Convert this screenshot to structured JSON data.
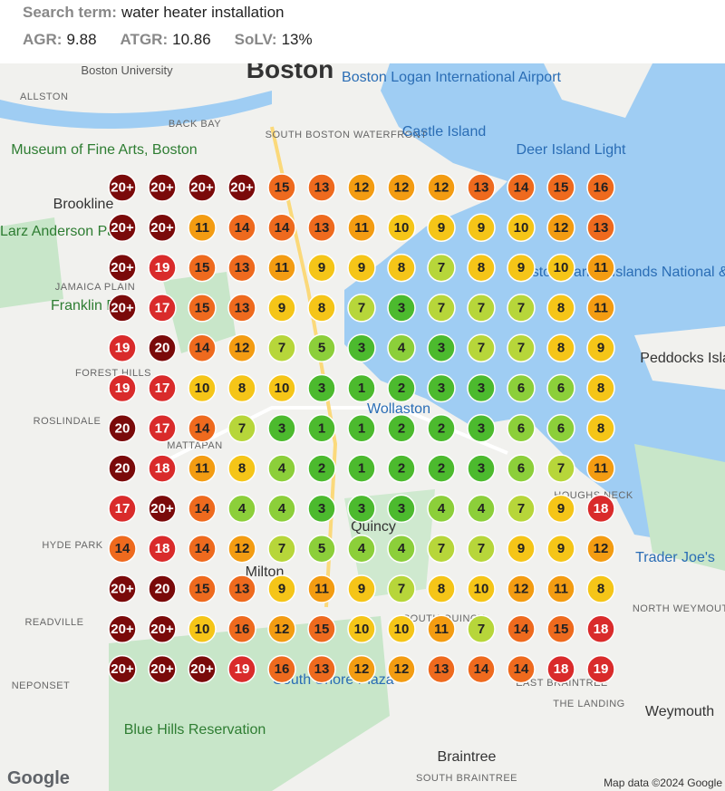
{
  "header": {
    "search_label": "Search term:",
    "search_term": "water heater installation",
    "metrics": [
      {
        "label": "AGR:",
        "value": 9.88
      },
      {
        "label": "ATGR:",
        "value": 10.86
      },
      {
        "label": "SoLV:",
        "value": "13%"
      }
    ]
  },
  "map": {
    "labels": [
      "Boston",
      "Boston University",
      "Boston Logan International Airport",
      "ALLSTON",
      "BACK BAY",
      "SOUTH BOSTON WATERFRONT",
      "Castle Island",
      "Deer Island Light",
      "Museum of Fine Arts, Boston",
      "Brookline",
      "Larz Anderson Park",
      "JAMAICA PLAIN",
      "Franklin Park",
      "Boston Harbor Islands National & State Park",
      "Peddocks Island",
      "FOREST HILLS",
      "ROSLINDALE",
      "MATTAPAN",
      "Wollaston",
      "HYDE PARK",
      "Quincy",
      "Milton",
      "Trader Joe's",
      "NORTH WEYMOUTH",
      "READVILLE",
      "NEPONSET",
      "SOUTH QUINCY",
      "EAST BRAINTREE",
      "THE LANDING",
      "Weymouth",
      "Blue Hills Reservation",
      "Braintree",
      "SOUTH BRAINTREE",
      "South Shore Plaza",
      "HOUGHS NECK"
    ],
    "attribution": "Map data ©2024 Google",
    "logo": "Google",
    "grid": [
      [
        "20+",
        "20+",
        "20+",
        "20+",
        15,
        13,
        12,
        12,
        12,
        13,
        14,
        15,
        16
      ],
      [
        "20+",
        "20+",
        11,
        14,
        14,
        13,
        11,
        10,
        9,
        9,
        10,
        12,
        13
      ],
      [
        "20+",
        19,
        15,
        13,
        11,
        9,
        9,
        8,
        7,
        8,
        9,
        10,
        11
      ],
      [
        "20+",
        17,
        15,
        13,
        9,
        8,
        7,
        3,
        7,
        7,
        7,
        8,
        11
      ],
      [
        19,
        20,
        14,
        12,
        7,
        5,
        3,
        4,
        3,
        7,
        7,
        8,
        9
      ],
      [
        19,
        17,
        10,
        8,
        10,
        3,
        1,
        2,
        3,
        3,
        6,
        6,
        8
      ],
      [
        20,
        17,
        14,
        7,
        3,
        1,
        1,
        2,
        2,
        3,
        6,
        6,
        8
      ],
      [
        20,
        18,
        11,
        8,
        4,
        2,
        1,
        2,
        2,
        3,
        6,
        7,
        11
      ],
      [
        17,
        "20+",
        14,
        4,
        4,
        3,
        3,
        3,
        4,
        4,
        7,
        9,
        18
      ],
      [
        14,
        18,
        14,
        12,
        7,
        5,
        4,
        4,
        7,
        7,
        9,
        9,
        12
      ],
      [
        "20+",
        20,
        15,
        13,
        9,
        11,
        9,
        7,
        8,
        10,
        12,
        11,
        8
      ],
      [
        "20+",
        "20+",
        10,
        16,
        12,
        15,
        10,
        10,
        11,
        7,
        14,
        15,
        18
      ],
      [
        "20+",
        "20+",
        "20+",
        19,
        16,
        13,
        12,
        12,
        13,
        14,
        14,
        18,
        19
      ]
    ]
  }
}
